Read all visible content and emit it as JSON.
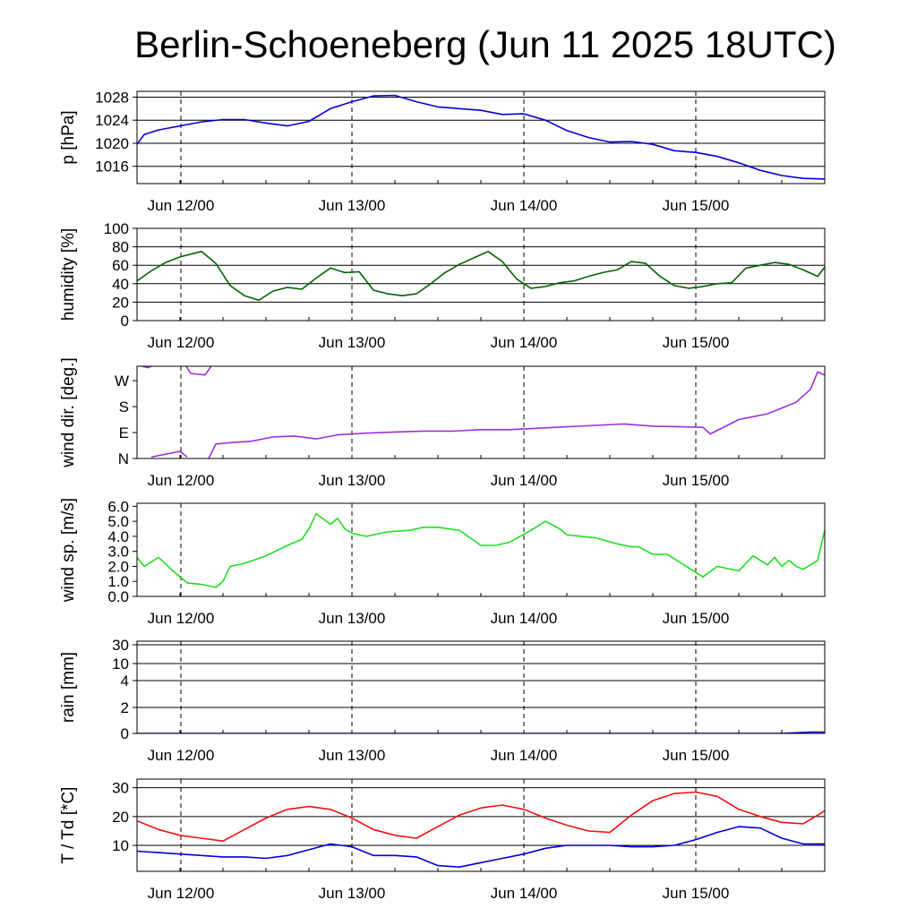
{
  "title": "Berlin-Schoeneberg (Jun 11 2025 18UTC)",
  "x_tick_labels": [
    "Jun 12/00",
    "Jun 13/00",
    "Jun 14/00",
    "Jun 15/00"
  ],
  "colors": {
    "pressure": "#0000dd",
    "humidity": "#006400",
    "wind_dir": "#9b30e0",
    "wind_speed": "#22dd22",
    "rain": "#0000dd",
    "temperature": "#ee1111",
    "dewpoint": "#0000dd",
    "grid": "#000000"
  },
  "chart_data": [
    {
      "type": "line",
      "ylabel": "p [hPa]",
      "x_unit": "hours since Jun 11 18UTC",
      "xlim": [
        0,
        96
      ],
      "ylim": [
        1013,
        1029
      ],
      "yticks": [
        1016,
        1020,
        1024,
        1028
      ],
      "ytick_labels": [
        "1016",
        "1020",
        "1024",
        "1028"
      ],
      "grid": true,
      "series": [
        {
          "color_key": "pressure",
          "x": [
            0,
            1,
            3,
            6,
            9,
            12,
            15,
            18,
            21,
            24,
            27,
            30,
            33,
            36,
            39,
            42,
            45,
            48,
            51,
            54,
            57,
            60,
            63,
            66,
            69,
            72,
            75,
            78,
            81,
            84,
            87,
            90,
            93,
            96
          ],
          "values": [
            1019.8,
            1021.5,
            1022.3,
            1023.0,
            1023.7,
            1024.1,
            1024.1,
            1023.5,
            1023.0,
            1023.8,
            1026.0,
            1027.2,
            1028.2,
            1028.3,
            1027.2,
            1026.3,
            1026.0,
            1025.7,
            1025.0,
            1025.1,
            1024.0,
            1022.2,
            1021.0,
            1020.2,
            1020.3,
            1019.8,
            1018.7,
            1018.4,
            1017.7,
            1016.6,
            1015.3,
            1014.4,
            1013.9,
            1013.8
          ]
        }
      ]
    },
    {
      "type": "line",
      "ylabel": "humidity [%]",
      "xlim": [
        0,
        96
      ],
      "ylim": [
        0,
        100
      ],
      "yticks": [
        0,
        20,
        40,
        60,
        80,
        100
      ],
      "ytick_labels": [
        "0",
        "20",
        "40",
        "60",
        "80",
        "100"
      ],
      "grid": true,
      "series": [
        {
          "color_key": "humidity",
          "x": [
            0,
            2,
            4,
            6,
            8,
            9,
            11,
            13,
            15,
            17,
            19,
            21,
            23,
            25,
            27,
            29,
            31,
            33,
            35,
            37,
            39,
            41,
            43,
            45,
            47,
            49,
            51,
            53,
            55,
            57,
            59,
            61,
            63,
            65,
            67,
            69,
            71,
            73,
            75,
            77,
            79,
            81,
            83,
            85,
            87,
            89,
            91,
            93,
            95,
            96
          ],
          "values": [
            43,
            54,
            63,
            69,
            73,
            75,
            62,
            38,
            27,
            22,
            32,
            36,
            34,
            46,
            57,
            52,
            53,
            33,
            29,
            27,
            29,
            40,
            52,
            61,
            68,
            75,
            64,
            45,
            35,
            37,
            41,
            43,
            48,
            52,
            55,
            64,
            62,
            48,
            38,
            35,
            37,
            40,
            41,
            57,
            60,
            63,
            61,
            55,
            48,
            58
          ]
        }
      ]
    },
    {
      "type": "line",
      "ylabel": "wind dir. [deg.]",
      "xlim": [
        0,
        96
      ],
      "ylim": [
        0,
        320
      ],
      "yticks": [
        0,
        90,
        180,
        270
      ],
      "ytick_labels": [
        "N",
        "E",
        "S",
        "W"
      ],
      "grid": false,
      "series": [
        {
          "color_key": "wind_dir",
          "name": "",
          "x": [
            0,
            1.5,
            3,
            4.5
          ],
          "values": [
            325,
            315,
            330,
            335
          ]
        },
        {
          "color_key": "wind_dir",
          "x": [
            2,
            4,
            6,
            7
          ],
          "values": [
            5,
            15,
            25,
            5
          ]
        },
        {
          "color_key": "wind_dir",
          "x": [
            6.5,
            7.5,
            9.5,
            10.5
          ],
          "values": [
            335,
            295,
            290,
            325
          ]
        },
        {
          "color_key": "wind_dir",
          "x": [
            10,
            11,
            13,
            16,
            19,
            22,
            25,
            28,
            32,
            36,
            40,
            44,
            48,
            52,
            56,
            60,
            64,
            68,
            72,
            76,
            79,
            80,
            82,
            84,
            86,
            88,
            90,
            92,
            94,
            95,
            96
          ],
          "values": [
            0,
            50,
            55,
            60,
            75,
            78,
            68,
            82,
            88,
            92,
            95,
            95,
            100,
            100,
            105,
            110,
            115,
            120,
            112,
            110,
            108,
            85,
            110,
            135,
            145,
            155,
            175,
            195,
            240,
            300,
            290
          ]
        }
      ]
    },
    {
      "type": "line",
      "ylabel": "wind sp. [m/s]",
      "xlim": [
        0,
        96
      ],
      "ylim": [
        0,
        6.2
      ],
      "yticks": [
        0,
        1,
        2,
        3,
        4,
        5,
        6
      ],
      "ytick_labels": [
        "0.0",
        "1.0",
        "2.0",
        "3.0",
        "4.0",
        "5.0",
        "6.0"
      ],
      "grid": false,
      "series": [
        {
          "color_key": "wind_speed",
          "x": [
            0,
            1,
            2,
            3,
            5,
            7,
            9,
            11,
            12,
            13,
            15,
            18,
            21,
            23,
            24,
            25,
            27,
            28,
            29,
            30,
            32,
            35,
            38,
            40,
            42,
            45,
            48,
            50,
            52,
            55,
            57,
            59,
            60,
            62,
            64,
            67,
            69,
            70,
            72,
            74,
            75,
            77,
            79,
            81,
            83,
            84,
            86,
            88,
            89,
            90,
            91,
            92,
            93,
            95,
            96
          ],
          "values": [
            2.6,
            2.0,
            2.3,
            2.6,
            1.7,
            0.9,
            0.8,
            0.6,
            1.0,
            2.0,
            2.2,
            2.7,
            3.4,
            3.8,
            4.5,
            5.5,
            4.8,
            5.2,
            4.5,
            4.2,
            4.0,
            4.3,
            4.4,
            4.6,
            4.6,
            4.4,
            3.4,
            3.4,
            3.6,
            4.4,
            5.0,
            4.5,
            4.1,
            4.0,
            3.9,
            3.5,
            3.3,
            3.3,
            2.8,
            2.8,
            2.5,
            1.9,
            1.3,
            2.0,
            1.8,
            1.7,
            2.7,
            2.1,
            2.6,
            2.0,
            2.4,
            2.0,
            1.8,
            2.4,
            4.4
          ]
        }
      ]
    },
    {
      "type": "line",
      "ylabel": "rain [mm]",
      "xlim": [
        0,
        96
      ],
      "yticks": [
        0,
        2,
        4,
        10,
        30
      ],
      "ytick_labels": [
        "0",
        "2",
        "4",
        "10",
        "30"
      ],
      "grid": true,
      "series": [
        {
          "color_key": "rain",
          "x": [
            0,
            90,
            92,
            94,
            96
          ],
          "values": [
            0,
            0,
            0.05,
            0.1,
            0.1
          ]
        }
      ]
    },
    {
      "type": "line",
      "ylabel": "T / Td [*C]",
      "xlim": [
        0,
        96
      ],
      "ylim": [
        1,
        33
      ],
      "yticks": [
        10,
        20,
        30
      ],
      "ytick_labels": [
        "10",
        "20",
        "30"
      ],
      "grid": true,
      "series": [
        {
          "color_key": "temperature",
          "x": [
            0,
            3,
            6,
            9,
            12,
            15,
            18,
            21,
            24,
            27,
            30,
            33,
            36,
            39,
            42,
            45,
            48,
            51,
            54,
            57,
            60,
            63,
            66,
            69,
            72,
            75,
            78,
            81,
            84,
            87,
            90,
            93,
            96
          ],
          "values": [
            18.5,
            15.5,
            13.5,
            12.5,
            11.5,
            15.5,
            19.5,
            22.5,
            23.5,
            22.5,
            19.5,
            15.5,
            13.5,
            12.5,
            16.5,
            20.5,
            23.0,
            24.0,
            22.5,
            19.5,
            17.0,
            15.0,
            14.5,
            20.5,
            25.5,
            28.0,
            28.5,
            27.0,
            22.5,
            20.0,
            18.0,
            17.5,
            22.0
          ]
        },
        {
          "color_key": "dewpoint",
          "x": [
            0,
            3,
            6,
            9,
            12,
            15,
            18,
            21,
            24,
            27,
            30,
            33,
            36,
            39,
            42,
            45,
            48,
            51,
            54,
            57,
            60,
            63,
            66,
            69,
            72,
            75,
            78,
            81,
            84,
            87,
            90,
            93,
            96
          ],
          "values": [
            8.0,
            7.5,
            7.0,
            6.5,
            6.0,
            6.0,
            5.5,
            6.5,
            8.5,
            10.5,
            9.5,
            6.5,
            6.5,
            6.0,
            3.0,
            2.5,
            4.0,
            5.5,
            7.0,
            9.0,
            10.0,
            10.0,
            10.0,
            9.5,
            9.5,
            10.0,
            12.0,
            14.5,
            16.5,
            16.0,
            12.5,
            10.5,
            10.5
          ]
        }
      ]
    }
  ]
}
